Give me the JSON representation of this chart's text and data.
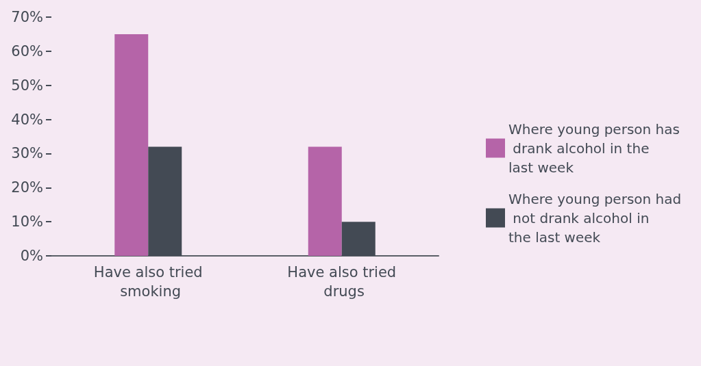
{
  "chart_data": {
    "type": "bar",
    "categories": [
      "Have also tried smoking",
      "Have also tried drugs"
    ],
    "series": [
      {
        "name": "Where young person has drank alcohol in the last week",
        "color": "#b564a8",
        "values": [
          65,
          32
        ]
      },
      {
        "name": "Where young person had not drank alcohol in the last week",
        "color": "#434a54",
        "values": [
          32,
          10
        ]
      }
    ],
    "ylim": [
      0,
      70
    ],
    "yticks": [
      {
        "value": 0,
        "label": "0%"
      },
      {
        "value": 10,
        "label": "10%"
      },
      {
        "value": 20,
        "label": "20%"
      },
      {
        "value": 30,
        "label": "30%"
      },
      {
        "value": 40,
        "label": "40%"
      },
      {
        "value": 50,
        "label": "50%"
      },
      {
        "value": 60,
        "label": "60%"
      },
      {
        "value": 70,
        "label": "70%"
      }
    ],
    "grid": false,
    "legend": "right"
  }
}
